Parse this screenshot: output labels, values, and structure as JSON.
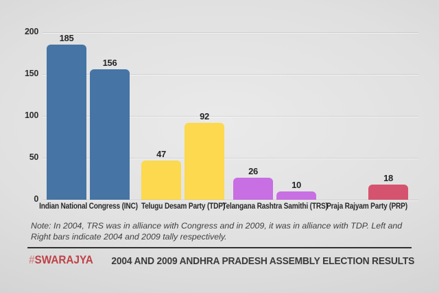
{
  "chart_data": {
    "type": "bar",
    "title": "2004 AND 2009 ANDHRA PRADESH ASSEMBLY ELECTION RESULTS",
    "categories": [
      "Indian National Congress (INC)",
      "Telugu Desam Party (TDP)",
      "Telangana Rashtra Samithi (TRS)",
      "Praja Rajyam Party (PRP)"
    ],
    "category_abbrs": [
      "INC",
      "TDP",
      "TRS",
      "PRP"
    ],
    "series": [
      {
        "name": "2004",
        "values": [
          185,
          47,
          26,
          null
        ]
      },
      {
        "name": "2009",
        "values": [
          156,
          92,
          10,
          18
        ]
      }
    ],
    "bar_colors_by_category": [
      "#4674A5",
      "#FCD94E",
      "#C76FE3",
      "#D5536E"
    ],
    "xlabel": "",
    "ylabel": "",
    "ylim": [
      0,
      200
    ],
    "yticks": [
      0,
      50,
      100,
      150,
      200
    ],
    "grid": "horizontal-light",
    "legend_position": "none",
    "value_labels": "above-bars"
  },
  "note": {
    "text": "Note: In 2004, TRS was in alliance with Congress and in 2009, it was in alliance with TDP. Left and Right bars indicate 2004 and 2009 tally respectively."
  },
  "footer": {
    "brand_hash": "#",
    "brand_name": "SWARAJYA",
    "brand_color": "#bf4046",
    "title": "2004 AND 2009 ANDHRA PRADESH ASSEMBLY ELECTION RESULTS"
  },
  "colors": {
    "background_center": "#eaeaea",
    "background_edge": "#c9c9c9",
    "axis_text": "#2d2d2d",
    "note_text": "#3e3e3e",
    "divider": "#30302e"
  }
}
